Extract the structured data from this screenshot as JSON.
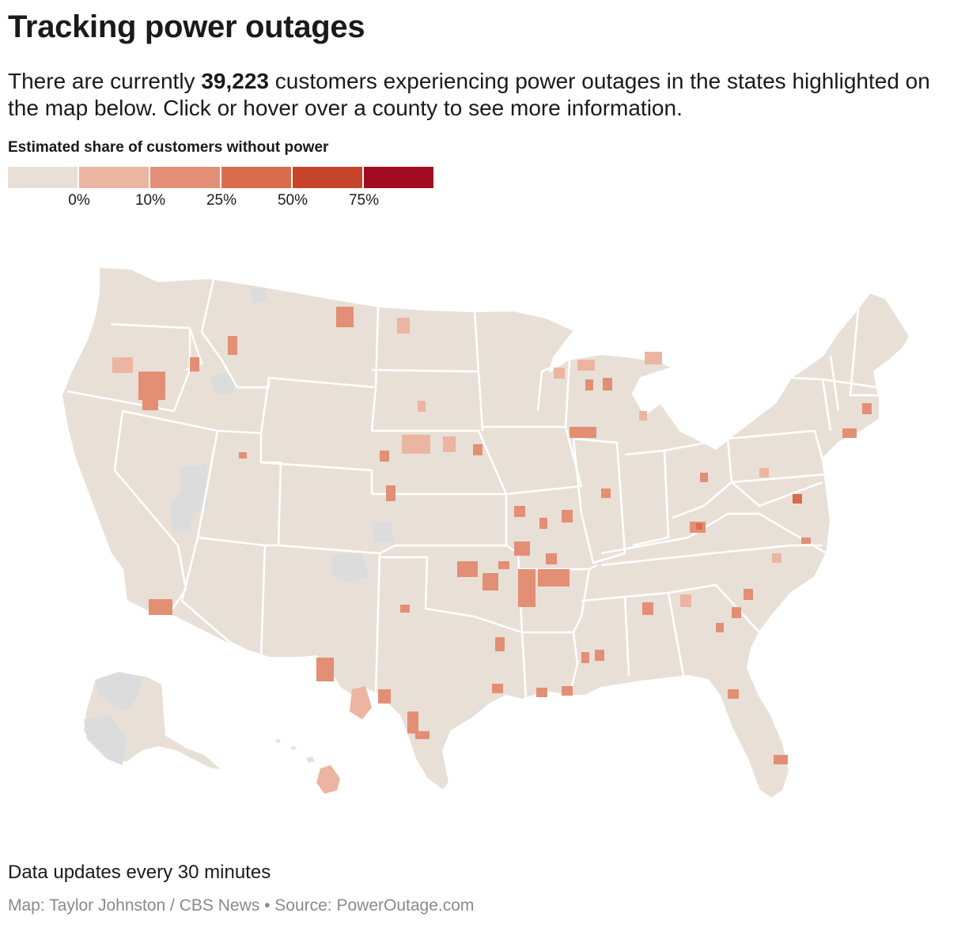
{
  "header": {
    "title": "Tracking power outages",
    "intro_prefix": "There are currently ",
    "intro_count": "39,223",
    "intro_suffix": " customers experiencing power outages in the states highlighted on the map below. Click or hover over a county to see more information."
  },
  "legend": {
    "title": "Estimated share of customers without power",
    "swatches": [
      "#e8e0d6",
      "#ebb5a2",
      "#e28f75",
      "#d96c4c",
      "#c6452a",
      "#a30c20"
    ],
    "ticks": [
      "0%",
      "10%",
      "25%",
      "50%",
      "75%"
    ]
  },
  "map": {
    "no_data_color": "#dcdcdc",
    "base_color": "#e8e0d6",
    "light_color": "#ebb5a2",
    "mid_color": "#e28f75",
    "border_color": "#ffffff"
  },
  "footer": {
    "update_note": "Data updates every 30 minutes",
    "credit": "Map: Taylor Johnston / CBS News • Source: PowerOutage.com"
  }
}
